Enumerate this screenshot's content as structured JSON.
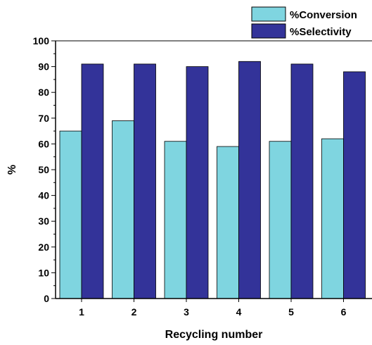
{
  "chart_data": {
    "type": "bar",
    "title": "",
    "xlabel": "Recycling number",
    "ylabel": "%",
    "categories": [
      "1",
      "2",
      "3",
      "4",
      "5",
      "6"
    ],
    "series": [
      {
        "name": "%Conversion",
        "values": [
          65,
          69,
          61,
          59,
          61,
          62
        ],
        "color": "#7fd5e0"
      },
      {
        "name": "%Selectivity",
        "values": [
          91,
          91,
          90,
          92,
          91,
          88
        ],
        "color": "#333399"
      }
    ],
    "ylim": [
      0,
      100
    ],
    "yticks": [
      "0",
      "10",
      "20",
      "30",
      "40",
      "50",
      "60",
      "70",
      "80",
      "90",
      "100"
    ],
    "grid": false,
    "legend": "top-right"
  }
}
